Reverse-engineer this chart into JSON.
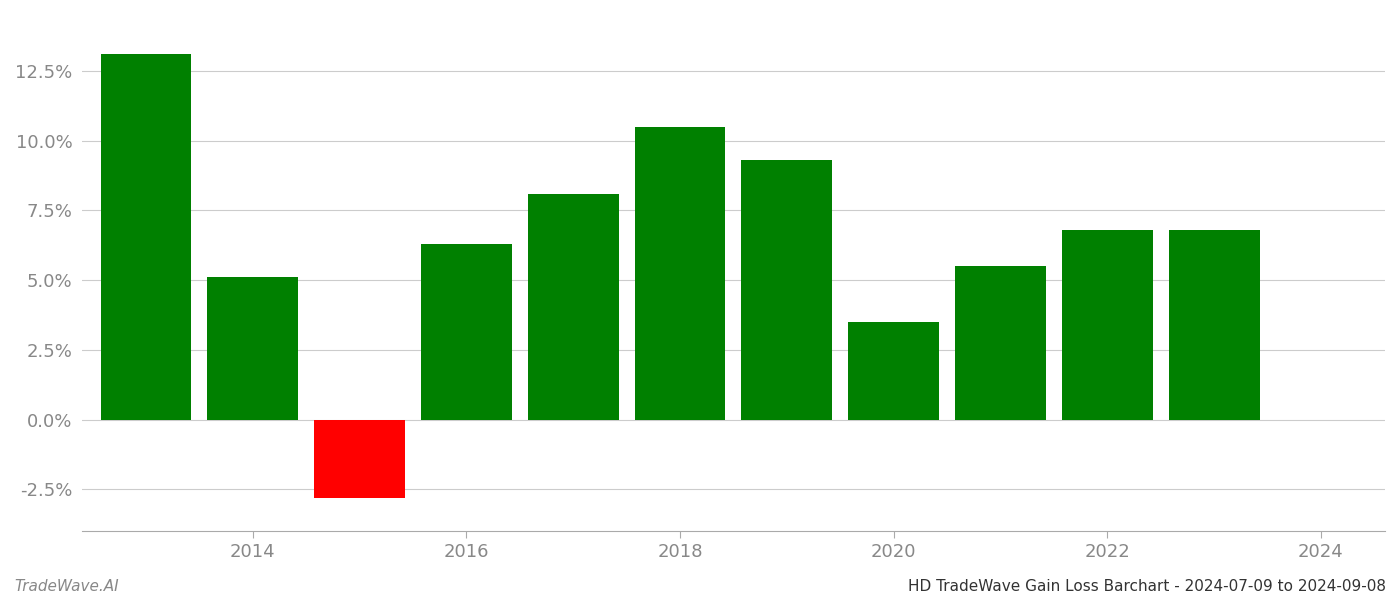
{
  "years": [
    2013,
    2014,
    2015,
    2016,
    2017,
    2018,
    2019,
    2020,
    2021,
    2022,
    2023
  ],
  "values": [
    0.131,
    0.051,
    -0.028,
    0.063,
    0.081,
    0.105,
    0.093,
    0.035,
    0.055,
    0.068,
    0.068
  ],
  "bar_colors": [
    "#008000",
    "#008000",
    "#ff0000",
    "#008000",
    "#008000",
    "#008000",
    "#008000",
    "#008000",
    "#008000",
    "#008000",
    "#008000"
  ],
  "ylim": [
    -0.04,
    0.145
  ],
  "yticks": [
    -0.025,
    0.0,
    0.025,
    0.05,
    0.075,
    0.1,
    0.125
  ],
  "xticks": [
    2014,
    2016,
    2018,
    2020,
    2022,
    2024
  ],
  "xlim": [
    2012.4,
    2024.6
  ],
  "background_color": "#ffffff",
  "grid_color": "#cccccc",
  "title_text": "HD TradeWave Gain Loss Barchart - 2024-07-09 to 2024-09-08",
  "watermark_text": "TradeWave.AI",
  "title_fontsize": 11,
  "tick_fontsize": 13,
  "bar_width": 0.85
}
